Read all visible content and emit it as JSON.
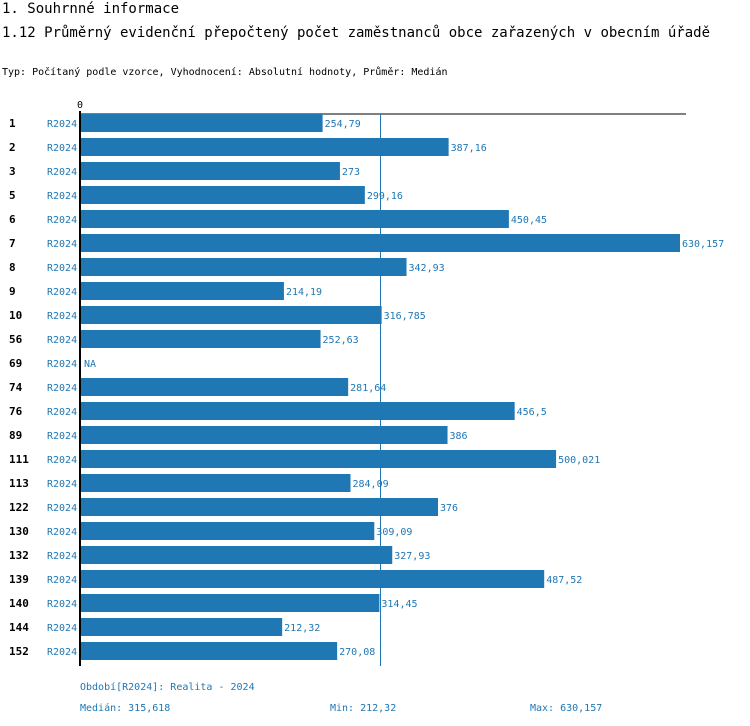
{
  "header": {
    "section": "1. Souhrnné informace",
    "title": "1.12 Průměrný evidenční přepočtený počet zaměstnanců obce zařazených v obecním úřadě",
    "subtitle": "Typ: Počítaný podle vzorce, Vyhodnocení: Absolutní hodnoty, Průměr: Medián"
  },
  "chart_data": {
    "type": "bar",
    "orientation": "horizontal",
    "axis_zero_label": "0",
    "xlim": [
      0,
      630.157
    ],
    "median_line": 315.618,
    "rows": [
      {
        "id": "1",
        "period": "R2024",
        "value": 254.79,
        "label": "254,79"
      },
      {
        "id": "2",
        "period": "R2024",
        "value": 387.16,
        "label": "387,16"
      },
      {
        "id": "3",
        "period": "R2024",
        "value": 273,
        "label": "273"
      },
      {
        "id": "5",
        "period": "R2024",
        "value": 299.16,
        "label": "299,16"
      },
      {
        "id": "6",
        "period": "R2024",
        "value": 450.45,
        "label": "450,45"
      },
      {
        "id": "7",
        "period": "R2024",
        "value": 630.157,
        "label": "630,157"
      },
      {
        "id": "8",
        "period": "R2024",
        "value": 342.93,
        "label": "342,93"
      },
      {
        "id": "9",
        "period": "R2024",
        "value": 214.19,
        "label": "214,19"
      },
      {
        "id": "10",
        "period": "R2024",
        "value": 316.785,
        "label": "316,785"
      },
      {
        "id": "56",
        "period": "R2024",
        "value": 252.63,
        "label": "252,63"
      },
      {
        "id": "69",
        "period": "R2024",
        "value": null,
        "label": "NA"
      },
      {
        "id": "74",
        "period": "R2024",
        "value": 281.64,
        "label": "281,64"
      },
      {
        "id": "76",
        "period": "R2024",
        "value": 456.5,
        "label": "456,5"
      },
      {
        "id": "89",
        "period": "R2024",
        "value": 386,
        "label": "386"
      },
      {
        "id": "111",
        "period": "R2024",
        "value": 500.021,
        "label": "500,021"
      },
      {
        "id": "113",
        "period": "R2024",
        "value": 284.09,
        "label": "284,09"
      },
      {
        "id": "122",
        "period": "R2024",
        "value": 376,
        "label": "376"
      },
      {
        "id": "130",
        "period": "R2024",
        "value": 309.09,
        "label": "309,09"
      },
      {
        "id": "132",
        "period": "R2024",
        "value": 327.93,
        "label": "327,93"
      },
      {
        "id": "139",
        "period": "R2024",
        "value": 487.52,
        "label": "487,52"
      },
      {
        "id": "140",
        "period": "R2024",
        "value": 314.45,
        "label": "314,45"
      },
      {
        "id": "144",
        "period": "R2024",
        "value": 212.32,
        "label": "212,32"
      },
      {
        "id": "152",
        "period": "R2024",
        "value": 270.08,
        "label": "270,08"
      }
    ]
  },
  "footer": {
    "period_note": "Období[R2024]: Realita - 2024",
    "median": "Medián: 315,618",
    "min": "Min: 212,32",
    "max": "Max: 630,157"
  },
  "colors": {
    "bar": "#1f77b4",
    "text_accent": "#1f77b4",
    "axis": "#000000"
  }
}
